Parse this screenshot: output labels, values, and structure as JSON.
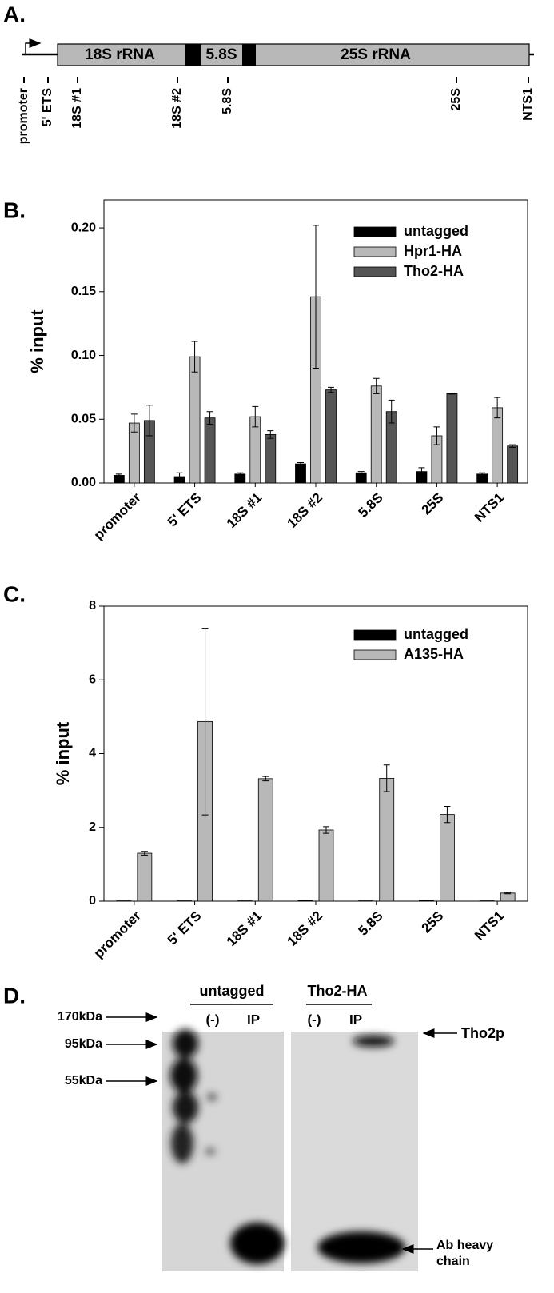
{
  "panel_a": {
    "label": "A.",
    "segments": [
      "18S rRNA",
      "5.8S",
      "25S rRNA"
    ],
    "primers": [
      "promoter",
      "5' ETS",
      "18S #1",
      "18S #2",
      "5.8S",
      "25S",
      "NTS1"
    ]
  },
  "chart_data": [
    {
      "type": "bar",
      "panel_label": "B.",
      "ylabel": "% input",
      "categories": [
        "promoter",
        "5' ETS",
        "18S #1",
        "18S #2",
        "5.8S",
        "25S",
        "NTS1"
      ],
      "series": [
        {
          "name": "untagged",
          "color": "#000000",
          "values": [
            0.006,
            0.005,
            0.007,
            0.015,
            0.008,
            0.009,
            0.007
          ],
          "errors": [
            0.001,
            0.003,
            0.001,
            0.001,
            0.001,
            0.003,
            0.001
          ]
        },
        {
          "name": "Hpr1-HA",
          "color": "#b8b8b8",
          "values": [
            0.047,
            0.099,
            0.052,
            0.146,
            0.076,
            0.037,
            0.059
          ],
          "errors": [
            0.007,
            0.012,
            0.008,
            0.056,
            0.006,
            0.007,
            0.008
          ]
        },
        {
          "name": "Tho2-HA",
          "color": "#555555",
          "values": [
            0.049,
            0.051,
            0.038,
            0.073,
            0.056,
            0.07,
            0.029
          ],
          "errors": [
            0.012,
            0.005,
            0.003,
            0.002,
            0.009,
            0.0003,
            0.001
          ]
        }
      ],
      "ylim": [
        0,
        0.222
      ],
      "yticks": [
        {
          "value": 0,
          "label": "0.00"
        },
        {
          "value": 0.05,
          "label": "0.05"
        },
        {
          "value": 0.1,
          "label": "0.10"
        },
        {
          "value": 0.15,
          "label": "0.15"
        },
        {
          "value": 0.2,
          "label": "0.20"
        }
      ],
      "legend": "upper right"
    },
    {
      "type": "bar",
      "panel_label": "C.",
      "ylabel": "% input",
      "categories": [
        "promoter",
        "5' ETS",
        "18S #1",
        "18S #2",
        "5.8S",
        "25S",
        "NTS1"
      ],
      "series": [
        {
          "name": "untagged",
          "color": "#000000",
          "values": [
            0.01,
            0.01,
            0.01,
            0.02,
            0.01,
            0.02,
            0.01
          ],
          "errors": [
            0,
            0,
            0,
            0,
            0,
            0,
            0
          ]
        },
        {
          "name": "A135-HA",
          "color": "#b8b8b8",
          "values": [
            1.3,
            4.87,
            3.32,
            1.93,
            3.33,
            2.35,
            0.22
          ],
          "errors": [
            0.05,
            2.53,
            0.06,
            0.09,
            0.36,
            0.22,
            0.02
          ]
        }
      ],
      "ylim": [
        0,
        8
      ],
      "yticks": [
        0,
        2,
        4,
        6,
        8
      ],
      "legend": "upper right"
    }
  ],
  "panel_d": {
    "label": "D.",
    "groups": [
      "untagged",
      "Tho2-HA"
    ],
    "lanes": [
      "(-)",
      "IP",
      "(-)",
      "IP"
    ],
    "markers": [
      "170kDa",
      "95kDa",
      "55kDa"
    ],
    "annotations": [
      "Tho2p",
      "Ab heavy chain"
    ]
  }
}
